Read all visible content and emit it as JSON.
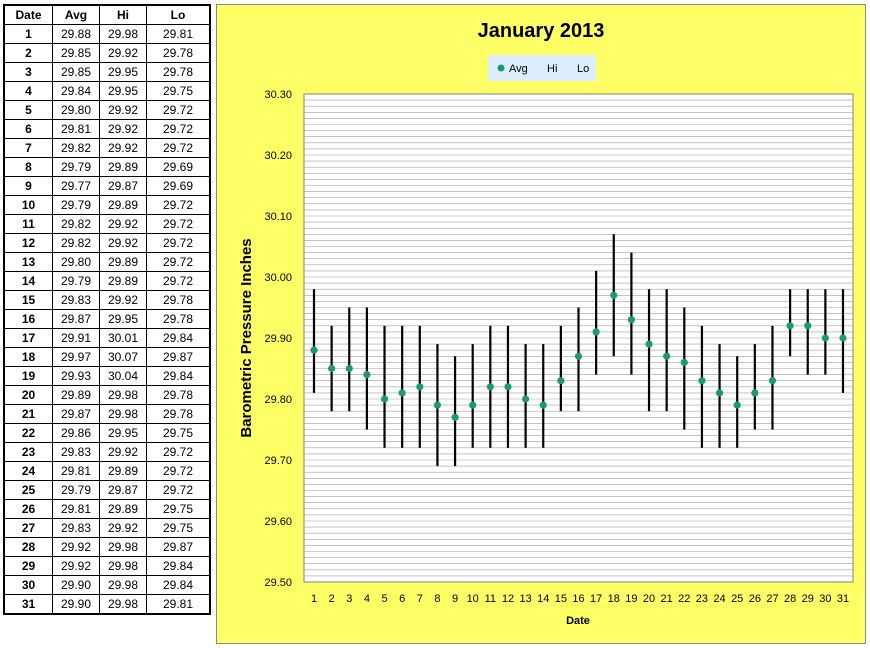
{
  "table": {
    "headers": [
      "Date",
      "Avg",
      "Hi",
      "Lo"
    ],
    "rows": [
      [
        "1",
        "29.88",
        "29.98",
        "29.81"
      ],
      [
        "2",
        "29.85",
        "29.92",
        "29.78"
      ],
      [
        "3",
        "29.85",
        "29.95",
        "29.78"
      ],
      [
        "4",
        "29.84",
        "29.95",
        "29.75"
      ],
      [
        "5",
        "29.80",
        "29.92",
        "29.72"
      ],
      [
        "6",
        "29.81",
        "29.92",
        "29.72"
      ],
      [
        "7",
        "29.82",
        "29.92",
        "29.72"
      ],
      [
        "8",
        "29.79",
        "29.89",
        "29.69"
      ],
      [
        "9",
        "29.77",
        "29.87",
        "29.69"
      ],
      [
        "10",
        "29.79",
        "29.89",
        "29.72"
      ],
      [
        "11",
        "29.82",
        "29.92",
        "29.72"
      ],
      [
        "12",
        "29.82",
        "29.92",
        "29.72"
      ],
      [
        "13",
        "29.80",
        "29.89",
        "29.72"
      ],
      [
        "14",
        "29.79",
        "29.89",
        "29.72"
      ],
      [
        "15",
        "29.83",
        "29.92",
        "29.78"
      ],
      [
        "16",
        "29.87",
        "29.95",
        "29.78"
      ],
      [
        "17",
        "29.91",
        "30.01",
        "29.84"
      ],
      [
        "18",
        "29.97",
        "30.07",
        "29.87"
      ],
      [
        "19",
        "29.93",
        "30.04",
        "29.84"
      ],
      [
        "20",
        "29.89",
        "29.98",
        "29.78"
      ],
      [
        "21",
        "29.87",
        "29.98",
        "29.78"
      ],
      [
        "22",
        "29.86",
        "29.95",
        "29.75"
      ],
      [
        "23",
        "29.83",
        "29.92",
        "29.72"
      ],
      [
        "24",
        "29.81",
        "29.89",
        "29.72"
      ],
      [
        "25",
        "29.79",
        "29.87",
        "29.72"
      ],
      [
        "26",
        "29.81",
        "29.89",
        "29.75"
      ],
      [
        "27",
        "29.83",
        "29.92",
        "29.75"
      ],
      [
        "28",
        "29.92",
        "29.98",
        "29.87"
      ],
      [
        "29",
        "29.92",
        "29.98",
        "29.84"
      ],
      [
        "30",
        "29.90",
        "29.98",
        "29.84"
      ],
      [
        "31",
        "29.90",
        "29.98",
        "29.81"
      ]
    ]
  },
  "chart_data": {
    "type": "scatter",
    "title": "January 2013",
    "xlabel": "Date",
    "ylabel": "Barometric Pressure Inches",
    "x": [
      1,
      2,
      3,
      4,
      5,
      6,
      7,
      8,
      9,
      10,
      11,
      12,
      13,
      14,
      15,
      16,
      17,
      18,
      19,
      20,
      21,
      22,
      23,
      24,
      25,
      26,
      27,
      28,
      29,
      30,
      31
    ],
    "series": [
      {
        "name": "Avg",
        "values": [
          29.88,
          29.85,
          29.85,
          29.84,
          29.8,
          29.81,
          29.82,
          29.79,
          29.77,
          29.79,
          29.82,
          29.82,
          29.8,
          29.79,
          29.83,
          29.87,
          29.91,
          29.97,
          29.93,
          29.89,
          29.87,
          29.86,
          29.83,
          29.81,
          29.79,
          29.81,
          29.83,
          29.92,
          29.92,
          29.9,
          29.9
        ]
      },
      {
        "name": "Hi",
        "values": [
          29.98,
          29.92,
          29.95,
          29.95,
          29.92,
          29.92,
          29.92,
          29.89,
          29.87,
          29.89,
          29.92,
          29.92,
          29.89,
          29.89,
          29.92,
          29.95,
          30.01,
          30.07,
          30.04,
          29.98,
          29.98,
          29.95,
          29.92,
          29.89,
          29.87,
          29.89,
          29.92,
          29.98,
          29.98,
          29.98,
          29.98
        ]
      },
      {
        "name": "Lo",
        "values": [
          29.81,
          29.78,
          29.78,
          29.75,
          29.72,
          29.72,
          29.72,
          29.69,
          29.69,
          29.72,
          29.72,
          29.72,
          29.72,
          29.72,
          29.78,
          29.78,
          29.84,
          29.87,
          29.84,
          29.78,
          29.78,
          29.75,
          29.72,
          29.72,
          29.72,
          29.75,
          29.75,
          29.87,
          29.84,
          29.84,
          29.81
        ]
      }
    ],
    "ylim": [
      29.5,
      30.3
    ],
    "yticks": [
      "30.30",
      "30.20",
      "30.10",
      "30.00",
      "29.90",
      "29.80",
      "29.70",
      "29.60",
      "29.50"
    ],
    "grid": true,
    "legend_position": "top",
    "colors": {
      "avg": "#1a9a6e",
      "range_line": "#000000",
      "background": "#ffff66",
      "plot_background": "#ffffff",
      "legend_background": "#ddeeff",
      "gridline": "#a0a0a0"
    }
  }
}
